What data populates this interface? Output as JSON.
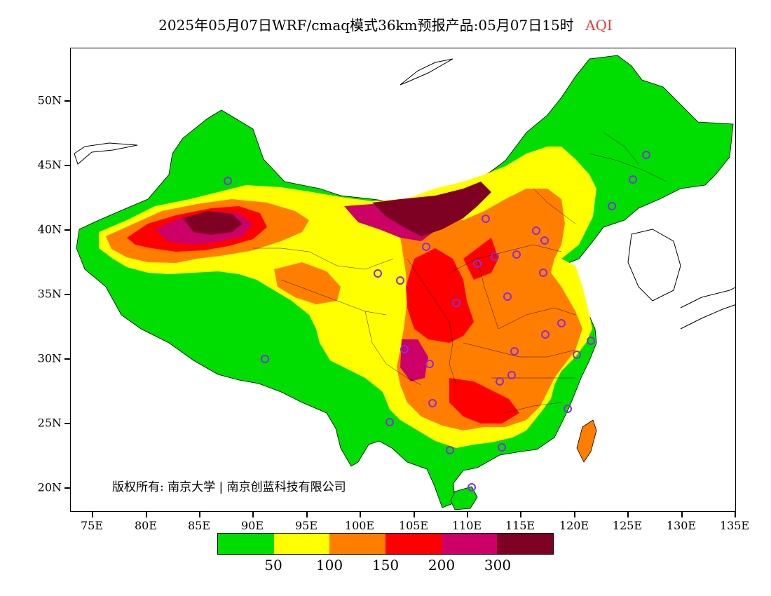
{
  "title": {
    "main": "2025年05月07日WRF/cmaq模式36km预报产品:05月07日15时",
    "pollutant": "AQI"
  },
  "axes": {
    "latitude_labels": [
      "50N",
      "45N",
      "40N",
      "35N",
      "30N",
      "25N",
      "20N"
    ],
    "longitude_labels": [
      "75E",
      "80E",
      "85E",
      "90E",
      "95E",
      "100E",
      "105E",
      "110E",
      "115E",
      "120E",
      "125E",
      "130E",
      "135E"
    ]
  },
  "copyright": "版权所有: 南京大学 | 南京创蓝科技有限公司",
  "legend": {
    "colors": [
      "#00dd00",
      "#ffff00",
      "#ff7e00",
      "#ff0000",
      "#cc0066",
      "#7e0023"
    ],
    "labels": [
      "50",
      "100",
      "150",
      "200",
      "300"
    ]
  },
  "colors": {
    "good": "#00dd00",
    "moderate": "#ffff00",
    "unhealthy_sensitive": "#ff7e00",
    "unhealthy": "#ff0000",
    "very_unhealthy": "#cc0066",
    "hazardous": "#7e0023",
    "station_marker": "#8a2be2"
  },
  "icons": [
    "station-marker-icon"
  ]
}
